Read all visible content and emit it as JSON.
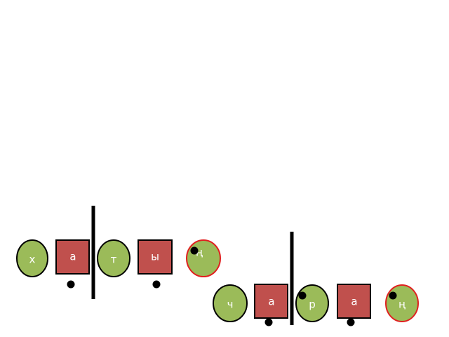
{
  "rows": [
    {
      "letters": [
        "х",
        "а",
        "т",
        "ы",
        "ң"
      ]
    },
    {
      "letters": [
        "ч",
        "а",
        "р",
        "а",
        "ң"
      ]
    }
  ]
}
